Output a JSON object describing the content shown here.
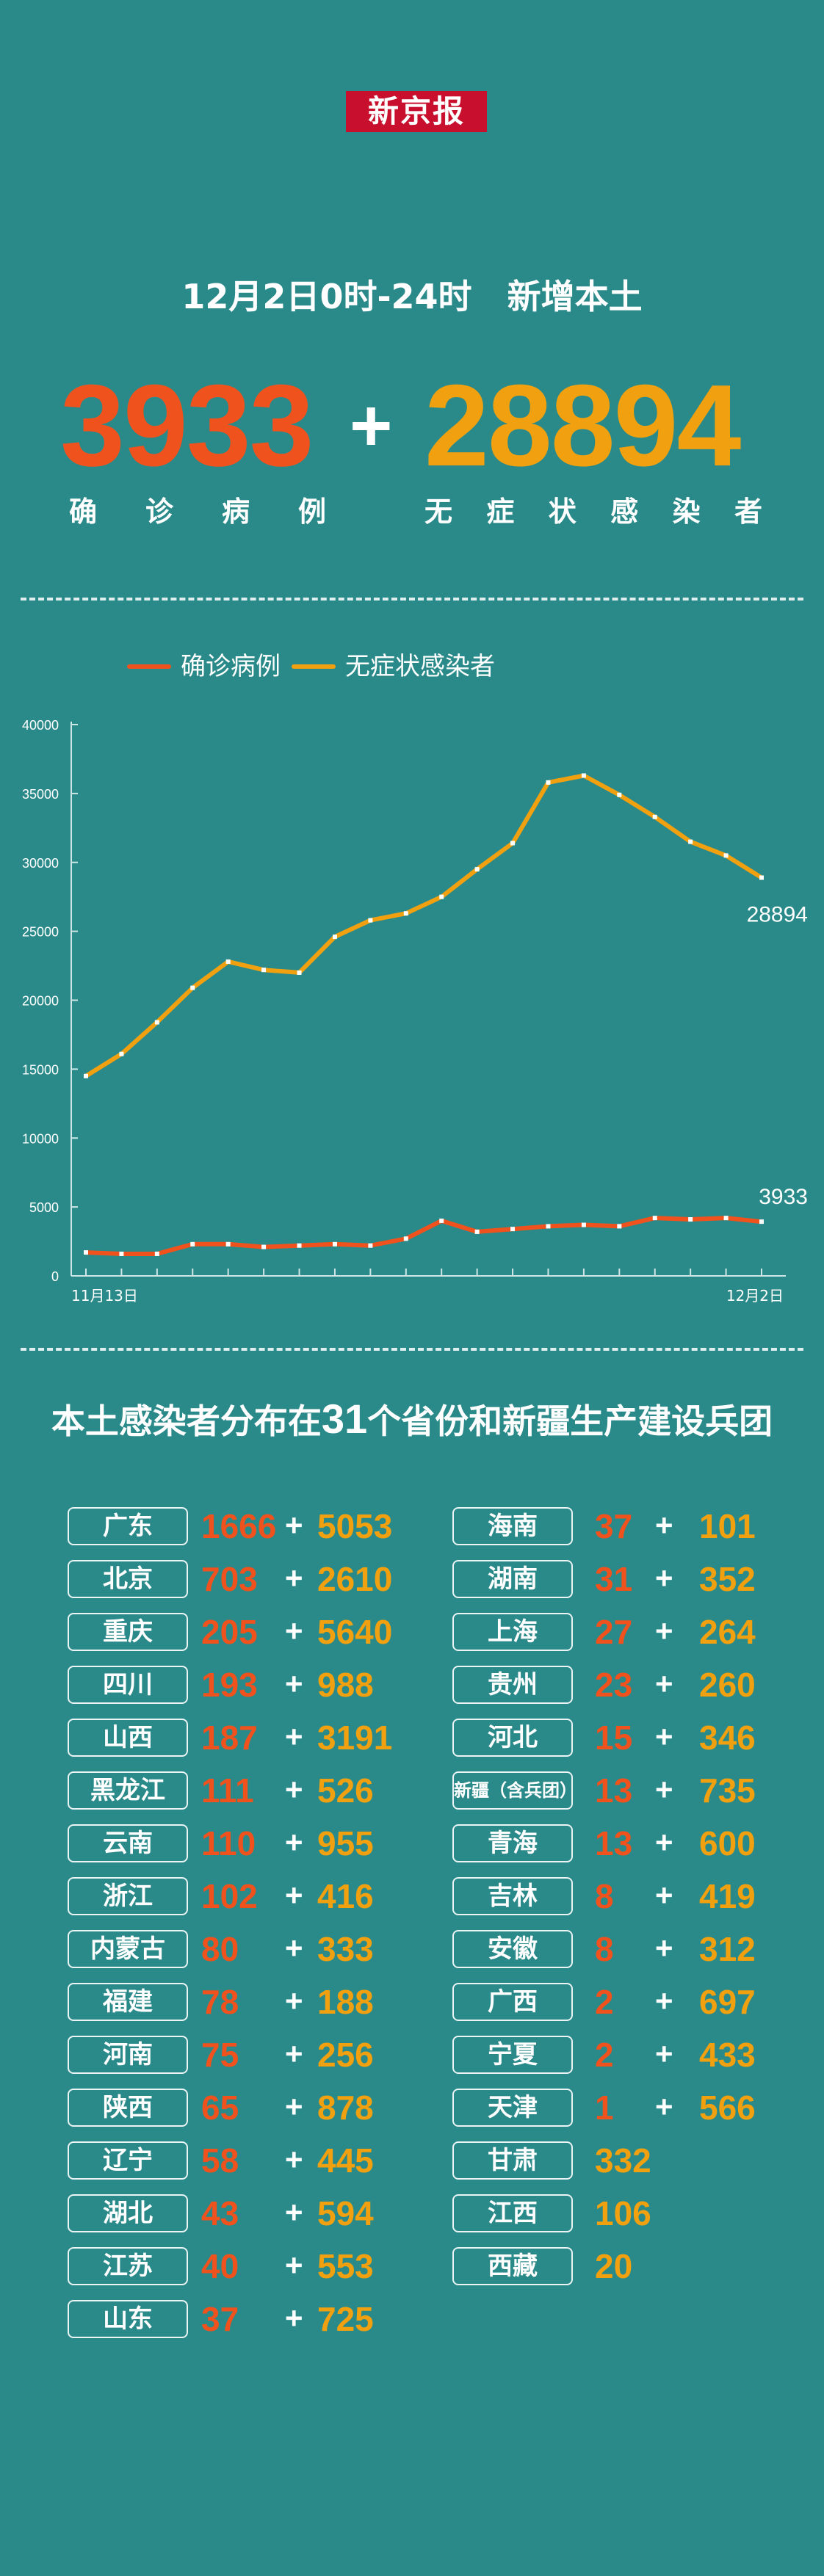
{
  "brand": "新京报",
  "headline": {
    "date": "12月2日0时-24时",
    "subject": "新增本土"
  },
  "summary": {
    "confirmed": "3933",
    "asymptomatic": "28894",
    "plus": "+",
    "confirmed_label": [
      "确",
      "诊",
      "病",
      "例"
    ],
    "asymptomatic_label": [
      "无",
      "症",
      "状",
      "感",
      "染",
      "者"
    ]
  },
  "colors": {
    "background": "#2a8a89",
    "confirmed": "#f0521d",
    "asymptomatic": "#f1a010"
  },
  "chart_data": {
    "type": "line",
    "x": [
      "11月13日",
      "11月14日",
      "11月15日",
      "11月16日",
      "11月17日",
      "11月18日",
      "11月19日",
      "11月20日",
      "11月21日",
      "11月22日",
      "11月23日",
      "11月24日",
      "11月25日",
      "11月26日",
      "11月27日",
      "11月28日",
      "11月29日",
      "11月30日",
      "12月1日",
      "12月2日"
    ],
    "xtick_labels": [
      "11月13日",
      "12月2日"
    ],
    "series": [
      {
        "name": "确诊病例",
        "color": "#f0521d",
        "end_label": "3933",
        "values": [
          1700,
          1600,
          1600,
          2300,
          2300,
          2100,
          2200,
          2300,
          2200,
          2700,
          4000,
          3200,
          3400,
          3600,
          3700,
          3600,
          4200,
          4100,
          4200,
          3933
        ]
      },
      {
        "name": "无症状感染者",
        "color": "#f1a010",
        "end_label": "28894",
        "values": [
          14500,
          16100,
          18400,
          20900,
          22800,
          22200,
          22000,
          24600,
          25800,
          26300,
          27500,
          29500,
          31400,
          35800,
          36300,
          34900,
          33300,
          31500,
          30500,
          28894
        ]
      }
    ],
    "yticks": [
      0,
      5000,
      10000,
      15000,
      20000,
      25000,
      30000,
      35000,
      40000
    ],
    "ylim": [
      0,
      40000
    ],
    "legend": "top-left",
    "grid": false
  },
  "distribution": {
    "title_pre": "本土感染者分布在",
    "title_num": "31",
    "title_post": "个省份和新疆生产建设兵团",
    "left": [
      {
        "name": "广东",
        "confirmed": "1666",
        "asym": "5053"
      },
      {
        "name": "北京",
        "confirmed": "703",
        "asym": "2610"
      },
      {
        "name": "重庆",
        "confirmed": "205",
        "asym": "5640"
      },
      {
        "name": "四川",
        "confirmed": "193",
        "asym": "988"
      },
      {
        "name": "山西",
        "confirmed": "187",
        "asym": "3191"
      },
      {
        "name": "黑龙江",
        "confirmed": "111",
        "asym": "526"
      },
      {
        "name": "云南",
        "confirmed": "110",
        "asym": "955"
      },
      {
        "name": "浙江",
        "confirmed": "102",
        "asym": "416"
      },
      {
        "name": "内蒙古",
        "confirmed": "80",
        "asym": "333"
      },
      {
        "name": "福建",
        "confirmed": "78",
        "asym": "188"
      },
      {
        "name": "河南",
        "confirmed": "75",
        "asym": "256"
      },
      {
        "name": "陕西",
        "confirmed": "65",
        "asym": "878"
      },
      {
        "name": "辽宁",
        "confirmed": "58",
        "asym": "445"
      },
      {
        "name": "湖北",
        "confirmed": "43",
        "asym": "594"
      },
      {
        "name": "江苏",
        "confirmed": "40",
        "asym": "553"
      },
      {
        "name": "山东",
        "confirmed": "37",
        "asym": "725"
      }
    ],
    "right": [
      {
        "name": "海南",
        "confirmed": "37",
        "asym": "101"
      },
      {
        "name": "湖南",
        "confirmed": "31",
        "asym": "352"
      },
      {
        "name": "上海",
        "confirmed": "27",
        "asym": "264"
      },
      {
        "name": "贵州",
        "confirmed": "23",
        "asym": "260"
      },
      {
        "name": "河北",
        "confirmed": "15",
        "asym": "346"
      },
      {
        "name": "新疆（含兵团）",
        "confirmed": "13",
        "asym": "735"
      },
      {
        "name": "青海",
        "confirmed": "13",
        "asym": "600"
      },
      {
        "name": "吉林",
        "confirmed": "8",
        "asym": "419"
      },
      {
        "name": "安徽",
        "confirmed": "8",
        "asym": "312"
      },
      {
        "name": "广西",
        "confirmed": "2",
        "asym": "697"
      },
      {
        "name": "宁夏",
        "confirmed": "2",
        "asym": "433"
      },
      {
        "name": "天津",
        "confirmed": "1",
        "asym": "566"
      },
      {
        "name": "甘肃",
        "confirmed": "",
        "asym": "332"
      },
      {
        "name": "江西",
        "confirmed": "",
        "asym": "106"
      },
      {
        "name": "西藏",
        "confirmed": "",
        "asym": "20"
      }
    ]
  }
}
